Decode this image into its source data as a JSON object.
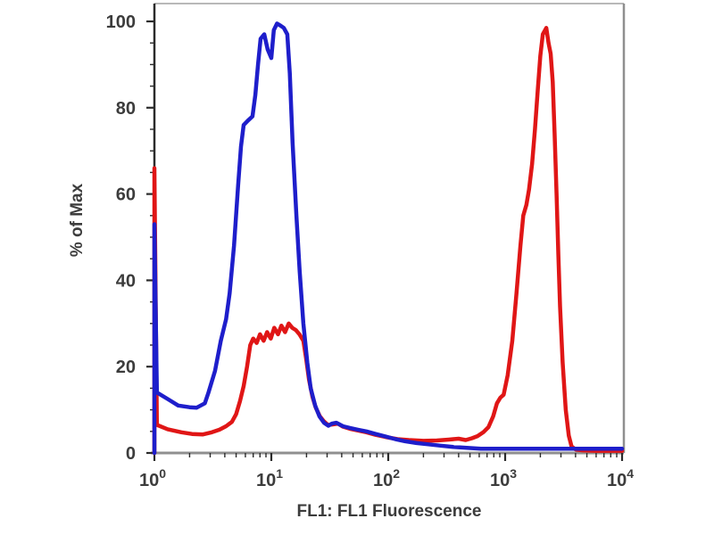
{
  "chart_data": {
    "type": "line",
    "subtype": "flow-cytometry-overlay-histogram",
    "title": "",
    "xlabel": "FL1: FL1 Fluorescence",
    "ylabel": "% of Max",
    "x_scale": "log",
    "x_range": [
      1,
      10000
    ],
    "y_range": [
      0,
      100
    ],
    "x_tick_base": "10",
    "x_tick_exponents": [
      0,
      1,
      2,
      3,
      4
    ],
    "y_ticks": [
      0,
      20,
      40,
      60,
      80,
      100
    ],
    "y_minor_step": 5,
    "grid": "off",
    "legend": "none",
    "colors": {
      "blue_series": "#1e1ecb",
      "red_series": "#e01616",
      "axis_left": "#2b2b2b",
      "axis_bottom": "#8f8f8f",
      "frame_right": "#8f8f8f",
      "frame_top": "#b8b8b8",
      "tick": "#2b2b2b",
      "text": "#3c3c3c",
      "background": "#ffffff"
    },
    "series": [
      {
        "name": "red",
        "color_key": "red_series",
        "points": [
          [
            1,
            0
          ],
          [
            1,
            66
          ],
          [
            1.05,
            6.5
          ],
          [
            1.3,
            5.5
          ],
          [
            1.7,
            4.8
          ],
          [
            2.1,
            4.4
          ],
          [
            2.6,
            4.3
          ],
          [
            3.1,
            4.8
          ],
          [
            3.6,
            5.4
          ],
          [
            4.1,
            6.2
          ],
          [
            4.6,
            7.2
          ],
          [
            5,
            9
          ],
          [
            5.4,
            12
          ],
          [
            5.8,
            15.5
          ],
          [
            6.2,
            20
          ],
          [
            6.6,
            25
          ],
          [
            7,
            26.5
          ],
          [
            7.5,
            25.5
          ],
          [
            8,
            27.5
          ],
          [
            8.6,
            26
          ],
          [
            9.2,
            28
          ],
          [
            9.9,
            26.5
          ],
          [
            10.6,
            29
          ],
          [
            11.4,
            27.5
          ],
          [
            12.2,
            29.5
          ],
          [
            13.1,
            28
          ],
          [
            14.1,
            30
          ],
          [
            15.1,
            29
          ],
          [
            16.2,
            28.5
          ],
          [
            17.4,
            27.5
          ],
          [
            18.8,
            26
          ],
          [
            19.8,
            22
          ],
          [
            21,
            17
          ],
          [
            22.5,
            13
          ],
          [
            24,
            10.5
          ],
          [
            26,
            8.5
          ],
          [
            28,
            7.4
          ],
          [
            30.5,
            6.5
          ],
          [
            33,
            6.6
          ],
          [
            37,
            6.8
          ],
          [
            41,
            6.1
          ],
          [
            47,
            5.6
          ],
          [
            55,
            5.2
          ],
          [
            65,
            4.8
          ],
          [
            78,
            4.2
          ],
          [
            95,
            3.7
          ],
          [
            120,
            3.2
          ],
          [
            150,
            3
          ],
          [
            200,
            2.8
          ],
          [
            260,
            2.9
          ],
          [
            330,
            3.1
          ],
          [
            400,
            3.3
          ],
          [
            460,
            3
          ],
          [
            520,
            3.4
          ],
          [
            580,
            3.9
          ],
          [
            650,
            4.8
          ],
          [
            720,
            6
          ],
          [
            790,
            8.5
          ],
          [
            850,
            11.5
          ],
          [
            910,
            12.8
          ],
          [
            970,
            13.5
          ],
          [
            1050,
            18
          ],
          [
            1150,
            26
          ],
          [
            1250,
            37
          ],
          [
            1350,
            48
          ],
          [
            1430,
            55
          ],
          [
            1520,
            57.5
          ],
          [
            1600,
            61
          ],
          [
            1700,
            67
          ],
          [
            1800,
            75
          ],
          [
            1900,
            84
          ],
          [
            2000,
            92
          ],
          [
            2100,
            97
          ],
          [
            2250,
            98.5
          ],
          [
            2350,
            95
          ],
          [
            2450,
            92.5
          ],
          [
            2550,
            86
          ],
          [
            2650,
            74
          ],
          [
            2750,
            60
          ],
          [
            2850,
            46
          ],
          [
            2950,
            34
          ],
          [
            3100,
            21
          ],
          [
            3300,
            10
          ],
          [
            3500,
            4
          ],
          [
            3700,
            1.5
          ],
          [
            4000,
            0.8
          ],
          [
            4600,
            0.6
          ],
          [
            6000,
            0.5
          ],
          [
            10000,
            0.5
          ]
        ]
      },
      {
        "name": "blue",
        "color_key": "blue_series",
        "points": [
          [
            1,
            0
          ],
          [
            1,
            53
          ],
          [
            1.05,
            14
          ],
          [
            1.3,
            12.5
          ],
          [
            1.6,
            11
          ],
          [
            2,
            10.6
          ],
          [
            2.3,
            10.5
          ],
          [
            2.7,
            11.5
          ],
          [
            2.9,
            14
          ],
          [
            3.3,
            19
          ],
          [
            3.7,
            26
          ],
          [
            4.1,
            31
          ],
          [
            4.4,
            37
          ],
          [
            4.8,
            48
          ],
          [
            5.2,
            62
          ],
          [
            5.5,
            71
          ],
          [
            5.8,
            76
          ],
          [
            6.3,
            77
          ],
          [
            6.9,
            78
          ],
          [
            7.3,
            83
          ],
          [
            7.7,
            90
          ],
          [
            8.1,
            96
          ],
          [
            8.7,
            97
          ],
          [
            9.3,
            93.5
          ],
          [
            10,
            91.5
          ],
          [
            10.5,
            98
          ],
          [
            11.2,
            99.5
          ],
          [
            12,
            99
          ],
          [
            12.8,
            98.5
          ],
          [
            13.7,
            97
          ],
          [
            14.4,
            88
          ],
          [
            15.2,
            72
          ],
          [
            16.4,
            55
          ],
          [
            17.5,
            42
          ],
          [
            18.8,
            30
          ],
          [
            20.3,
            21
          ],
          [
            21.7,
            15
          ],
          [
            23.7,
            11
          ],
          [
            25.8,
            8.5
          ],
          [
            28.2,
            7
          ],
          [
            30.8,
            6.3
          ],
          [
            33,
            6.8
          ],
          [
            36,
            7
          ],
          [
            41,
            6.2
          ],
          [
            47,
            5.8
          ],
          [
            55,
            5.4
          ],
          [
            65,
            5
          ],
          [
            78,
            4.4
          ],
          [
            95,
            3.8
          ],
          [
            115,
            3.2
          ],
          [
            140,
            2.7
          ],
          [
            175,
            2.3
          ],
          [
            220,
            2
          ],
          [
            280,
            1.7
          ],
          [
            360,
            1.4
          ],
          [
            470,
            1.2
          ],
          [
            620,
            1
          ],
          [
            900,
            1
          ],
          [
            1400,
            1
          ],
          [
            2200,
            1
          ],
          [
            3500,
            1
          ],
          [
            5500,
            1
          ],
          [
            8000,
            1
          ],
          [
            10000,
            1
          ]
        ]
      }
    ]
  }
}
